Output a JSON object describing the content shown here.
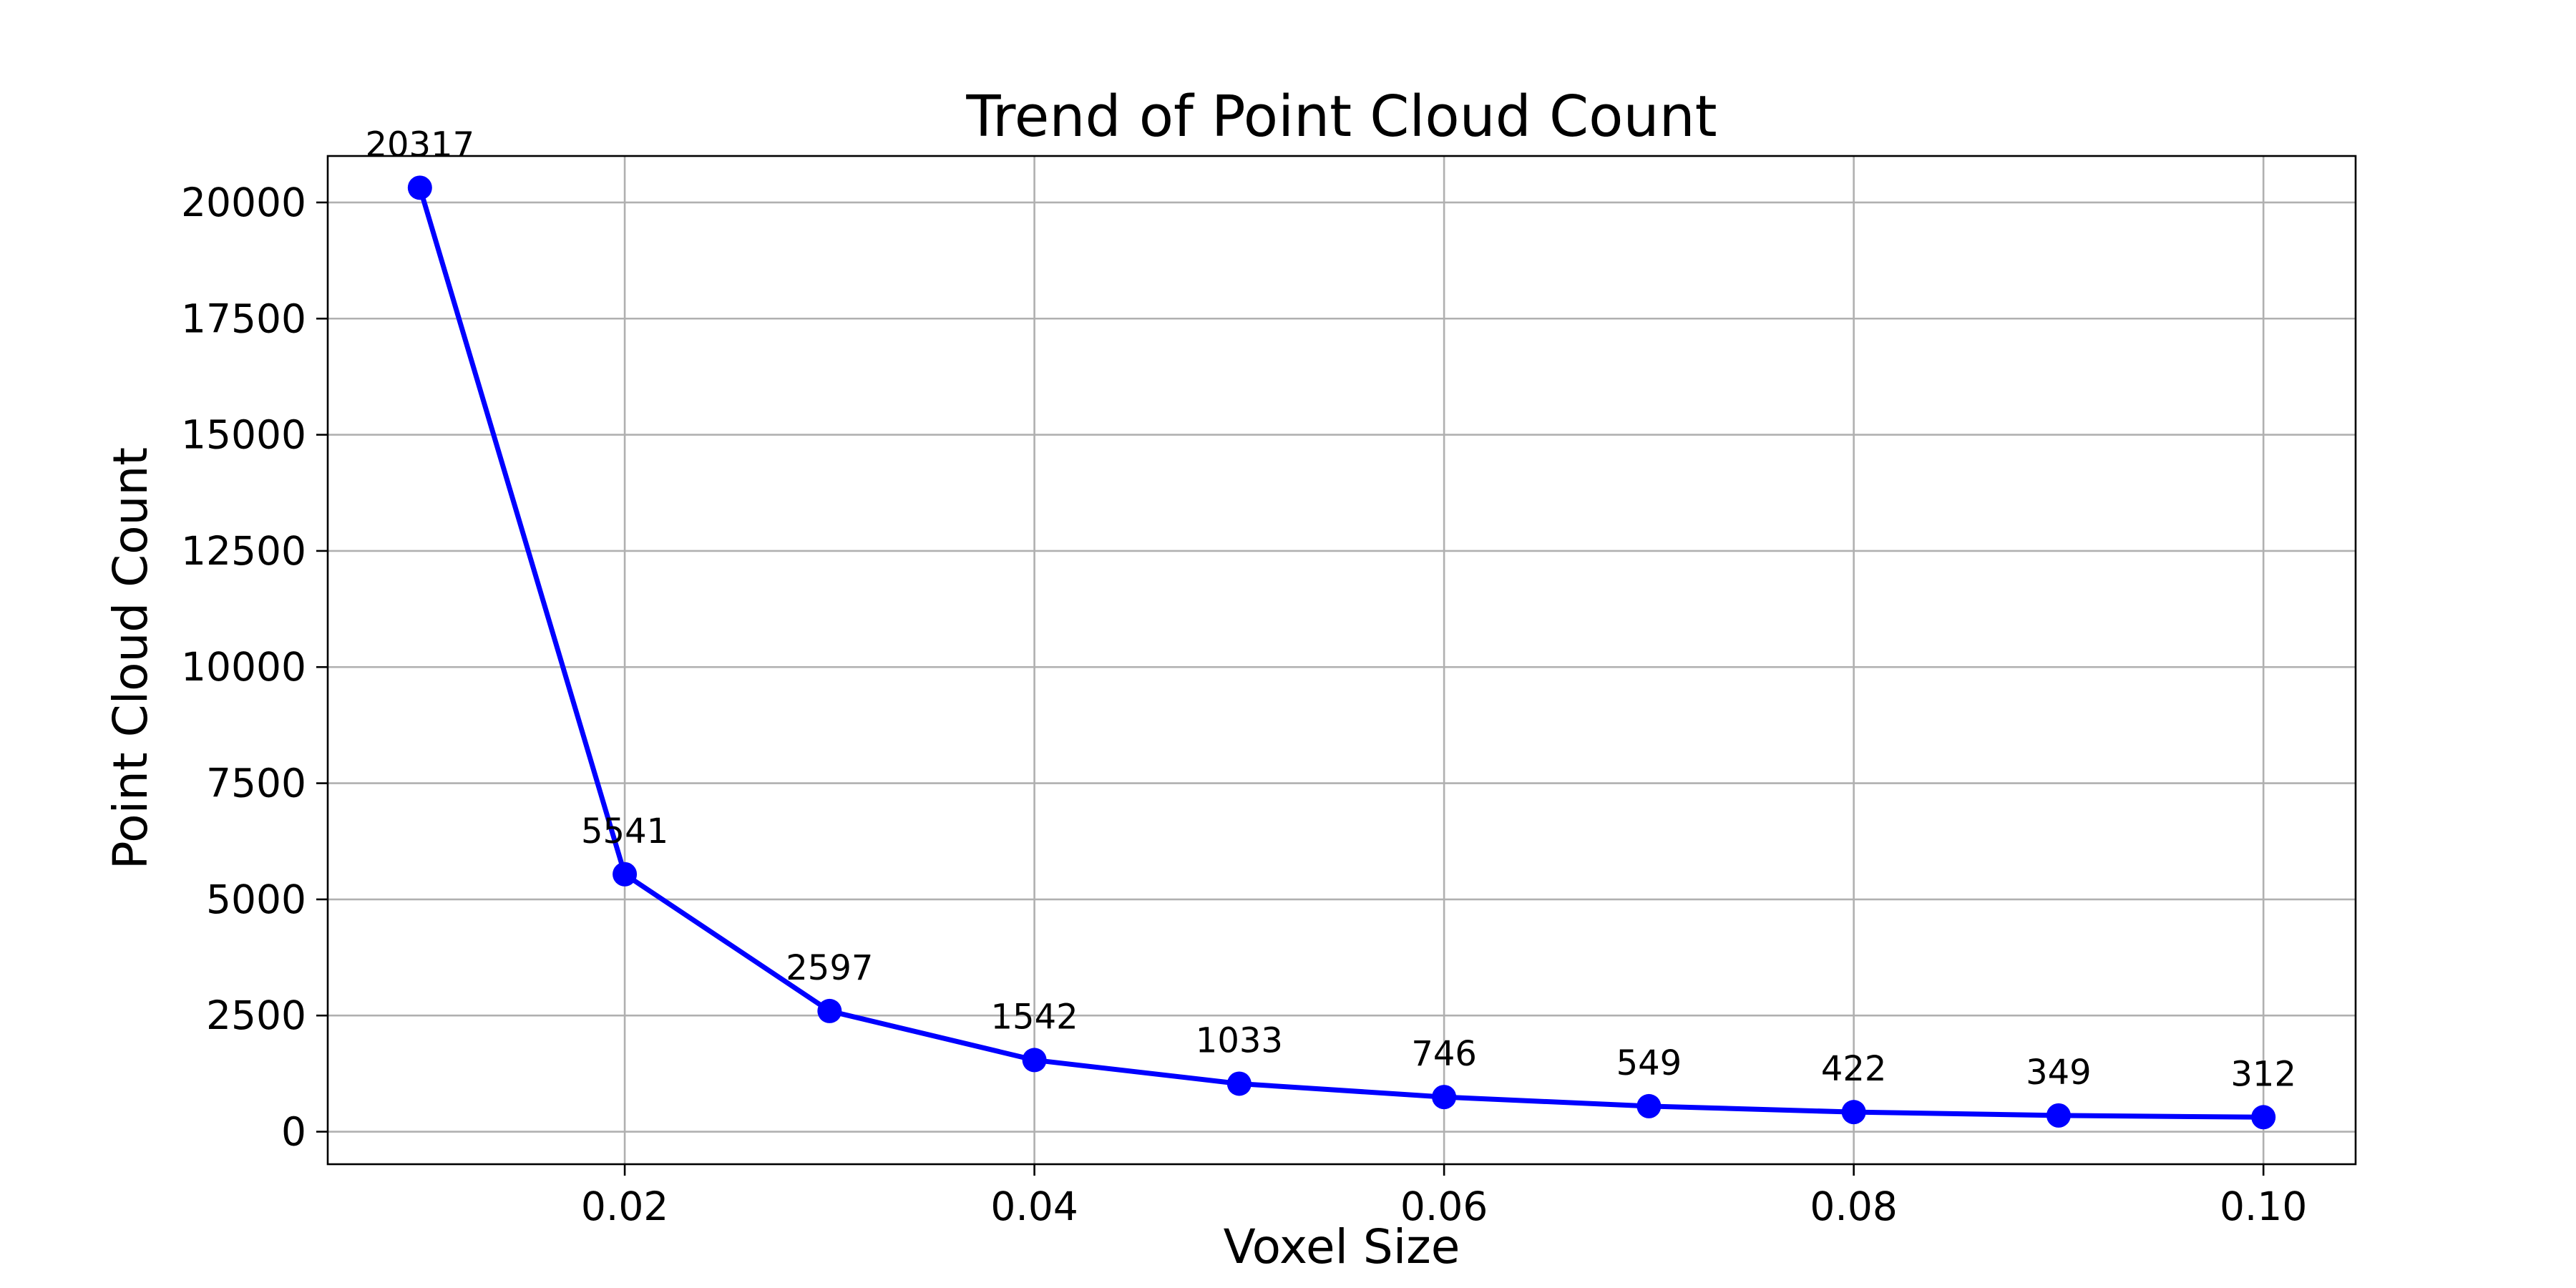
{
  "chart_data": {
    "type": "line",
    "title": "Trend of Point Cloud Count",
    "xlabel": "Voxel Size",
    "ylabel": "Point Cloud Count",
    "x": [
      0.01,
      0.02,
      0.03,
      0.04,
      0.05,
      0.06,
      0.07,
      0.08,
      0.09,
      0.1
    ],
    "series": [
      {
        "values": [
          20317,
          5541,
          2597,
          1542,
          1033,
          746,
          549,
          422,
          349,
          312
        ],
        "color": "#0000ff",
        "marker": "circle"
      }
    ],
    "data_labels": [
      "20317",
      "5541",
      "2597",
      "1542",
      "1033",
      "746",
      "549",
      "422",
      "349",
      "312"
    ],
    "xticks": [
      0.02,
      0.04,
      0.06,
      0.08,
      0.1
    ],
    "xtick_labels": [
      "0.02",
      "0.04",
      "0.06",
      "0.08",
      "0.10"
    ],
    "yticks": [
      0,
      2500,
      5000,
      7500,
      10000,
      12500,
      15000,
      17500,
      20000
    ],
    "ytick_labels": [
      "0",
      "2500",
      "5000",
      "7500",
      "10000",
      "12500",
      "15000",
      "17500",
      "20000"
    ],
    "xlim": [
      0.0055,
      0.1045
    ],
    "ylim": [
      -700,
      21000
    ],
    "grid": true,
    "legend": "none"
  }
}
